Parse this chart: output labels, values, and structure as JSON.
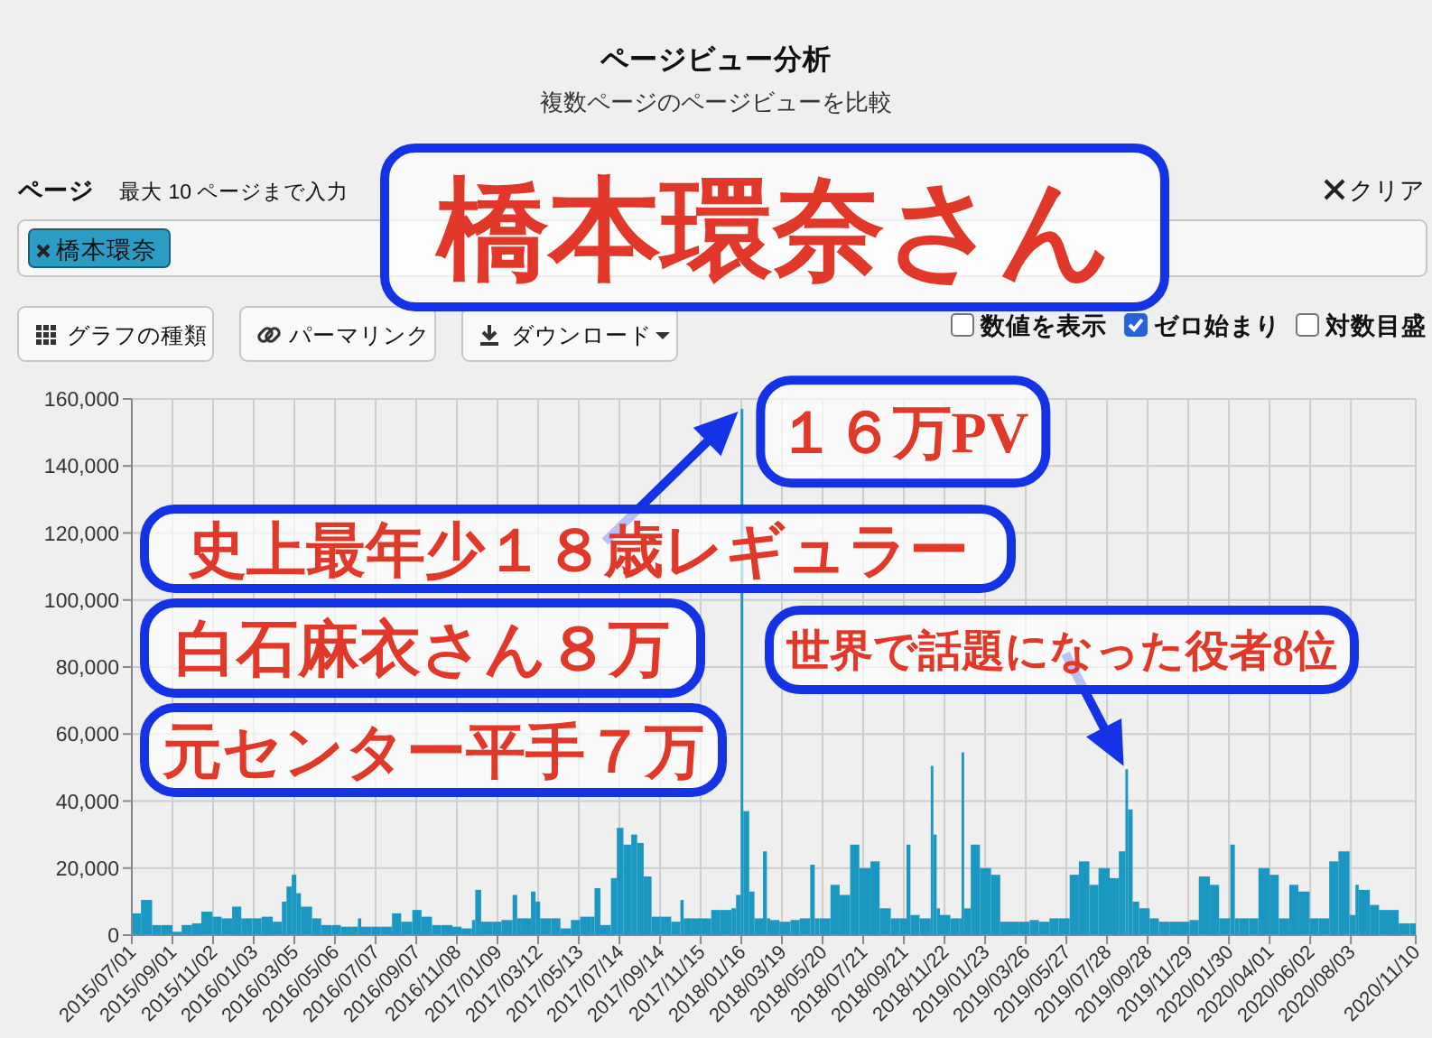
{
  "chart_data": {
    "type": "bar",
    "title": "ページビュー分析",
    "subtitle": "複数ページのページビューを比較",
    "color": "#1b98c2",
    "grid": true,
    "x": [
      "2015-07-01",
      "2015-07-15",
      "2015-08-01",
      "2015-08-15",
      "2015-09-01",
      "2015-09-15",
      "2015-10-01",
      "2015-10-15",
      "2015-11-01",
      "2015-11-15",
      "2015-12-01",
      "2015-12-15",
      "2016-01-01",
      "2016-01-15",
      "2016-02-01",
      "2016-02-15",
      "2016-02-22",
      "2016-03-01",
      "2016-03-08",
      "2016-03-15",
      "2016-04-01",
      "2016-04-15",
      "2016-05-01",
      "2016-05-15",
      "2016-06-01",
      "2016-06-10",
      "2016-06-15",
      "2016-07-01",
      "2016-07-15",
      "2016-08-01",
      "2016-08-15",
      "2016-09-01",
      "2016-09-15",
      "2016-10-01",
      "2016-10-15",
      "2016-11-01",
      "2016-11-15",
      "2016-12-01",
      "2016-12-06",
      "2016-12-15",
      "2017-01-01",
      "2017-01-15",
      "2017-02-01",
      "2017-02-08",
      "2017-02-15",
      "2017-03-01",
      "2017-03-08",
      "2017-03-15",
      "2017-04-01",
      "2017-04-15",
      "2017-05-01",
      "2017-05-15",
      "2017-06-01",
      "2017-06-06",
      "2017-06-15",
      "2017-07-01",
      "2017-07-10",
      "2017-07-20",
      "2017-08-01",
      "2017-08-10",
      "2017-08-20",
      "2017-09-01",
      "2017-09-15",
      "2017-10-01",
      "2017-10-15",
      "2017-10-20",
      "2017-11-01",
      "2017-11-15",
      "2017-12-01",
      "2017-12-15",
      "2018-01-01",
      "2018-01-08",
      "2018-01-15",
      "2018-01-19",
      "2018-01-28",
      "2018-02-05",
      "2018-02-18",
      "2018-02-24",
      "2018-03-01",
      "2018-03-15",
      "2018-04-01",
      "2018-04-15",
      "2018-05-01",
      "2018-05-08",
      "2018-05-15",
      "2018-06-01",
      "2018-06-15",
      "2018-07-01",
      "2018-07-15",
      "2018-08-01",
      "2018-08-15",
      "2018-09-01",
      "2018-09-15",
      "2018-09-25",
      "2018-10-01",
      "2018-10-15",
      "2018-11-01",
      "2018-11-05",
      "2018-11-10",
      "2018-11-15",
      "2018-12-01",
      "2018-12-15",
      "2018-12-18",
      "2018-12-22",
      "2019-01-01",
      "2019-01-15",
      "2019-02-01",
      "2019-02-15",
      "2019-03-01",
      "2019-03-15",
      "2019-04-01",
      "2019-04-15",
      "2019-05-01",
      "2019-05-15",
      "2019-06-01",
      "2019-06-15",
      "2019-07-01",
      "2019-07-15",
      "2019-08-01",
      "2019-08-15",
      "2019-08-25",
      "2019-08-29",
      "2019-09-05",
      "2019-09-15",
      "2019-10-01",
      "2019-10-15",
      "2019-11-01",
      "2019-11-15",
      "2019-12-01",
      "2019-12-15",
      "2020-01-01",
      "2020-01-15",
      "2020-02-01",
      "2020-02-08",
      "2020-02-15",
      "2020-03-01",
      "2020-03-15",
      "2020-04-01",
      "2020-04-15",
      "2020-05-01",
      "2020-05-15",
      "2020-06-01",
      "2020-06-15",
      "2020-07-01",
      "2020-07-15",
      "2020-08-01",
      "2020-08-10",
      "2020-08-15",
      "2020-09-01",
      "2020-09-15",
      "2020-10-01",
      "2020-10-15",
      "2020-11-01"
    ],
    "values": [
      6500,
      10500,
      3000,
      3000,
      1000,
      3000,
      3500,
      7000,
      5500,
      5000,
      8500,
      5000,
      5000,
      5500,
      4000,
      10000,
      14500,
      18000,
      12500,
      8500,
      5000,
      3000,
      3000,
      2500,
      2500,
      5000,
      2500,
      2500,
      2500,
      6500,
      4000,
      7500,
      5500,
      3000,
      3000,
      2500,
      2000,
      4500,
      13500,
      4000,
      4000,
      4500,
      12000,
      5000,
      5000,
      13000,
      10000,
      5000,
      5000,
      2000,
      4500,
      5500,
      5500,
      14000,
      3000,
      17000,
      32000,
      27000,
      30000,
      27500,
      17500,
      5500,
      5500,
      4000,
      10500,
      5000,
      5000,
      5000,
      7500,
      7500,
      8000,
      12000,
      157000,
      37000,
      13000,
      5000,
      25000,
      5000,
      4500,
      4000,
      4500,
      5000,
      21000,
      5000,
      5000,
      15000,
      12000,
      27000,
      20000,
      22000,
      8000,
      5000,
      5000,
      27000,
      6000,
      5000,
      50500,
      30000,
      8000,
      6000,
      5000,
      5000,
      54500,
      8000,
      27000,
      20000,
      18000,
      4000,
      4000,
      4000,
      4500,
      4000,
      5000,
      5000,
      18000,
      22000,
      15000,
      20000,
      17000,
      25000,
      49500,
      37500,
      10000,
      8000,
      5000,
      4000,
      4000,
      4000,
      4500,
      17500,
      15000,
      5000,
      27000,
      5000,
      5000,
      5000,
      20000,
      18000,
      5000,
      15000,
      13000,
      5000,
      5000,
      22000,
      25000,
      6000,
      15000,
      13500,
      9000,
      7500,
      7500,
      3500,
      3500
    ],
    "xlim": [
      "2015-07-01",
      "2020-11-10"
    ],
    "xticks": [
      {
        "value": "2015-07-01",
        "label": "2015/07/01"
      },
      {
        "value": "2015-09-01",
        "label": "2015/09/01"
      },
      {
        "value": "2015-11-02",
        "label": "2015/11/02"
      },
      {
        "value": "2016-01-03",
        "label": "2016/01/03"
      },
      {
        "value": "2016-03-05",
        "label": "2016/03/05"
      },
      {
        "value": "2016-05-06",
        "label": "2016/05/06"
      },
      {
        "value": "2016-07-07",
        "label": "2016/07/07"
      },
      {
        "value": "2016-09-07",
        "label": "2016/09/07"
      },
      {
        "value": "2016-11-08",
        "label": "2016/11/08"
      },
      {
        "value": "2017-01-09",
        "label": "2017/01/09"
      },
      {
        "value": "2017-03-12",
        "label": "2017/03/12"
      },
      {
        "value": "2017-05-13",
        "label": "2017/05/13"
      },
      {
        "value": "2017-07-14",
        "label": "2017/07/14"
      },
      {
        "value": "2017-09-14",
        "label": "2017/09/14"
      },
      {
        "value": "2017-11-15",
        "label": "2017/11/15"
      },
      {
        "value": "2018-01-16",
        "label": "2018/01/16"
      },
      {
        "value": "2018-03-19",
        "label": "2018/03/19"
      },
      {
        "value": "2018-05-20",
        "label": "2018/05/20"
      },
      {
        "value": "2018-07-21",
        "label": "2018/07/21"
      },
      {
        "value": "2018-09-21",
        "label": "2018/09/21"
      },
      {
        "value": "2018-11-22",
        "label": "2018/11/22"
      },
      {
        "value": "2019-01-23",
        "label": "2019/01/23"
      },
      {
        "value": "2019-03-26",
        "label": "2019/03/26"
      },
      {
        "value": "2019-05-27",
        "label": "2019/05/27"
      },
      {
        "value": "2019-07-28",
        "label": "2019/07/28"
      },
      {
        "value": "2019-09-28",
        "label": "2019/09/28"
      },
      {
        "value": "2019-11-29",
        "label": "2019/11/29"
      },
      {
        "value": "2020-01-30",
        "label": "2020/01/30"
      },
      {
        "value": "2020-04-01",
        "label": "2020/04/01"
      },
      {
        "value": "2020-06-02",
        "label": "2020/06/02"
      },
      {
        "value": "2020-08-03",
        "label": "2020/08/03"
      },
      {
        "value": "2020-11-10",
        "label": "2020/11/10"
      }
    ],
    "ylim": [
      0,
      160000
    ],
    "yticks": [
      0,
      {
        "value": 20000,
        "label": "20,000"
      },
      {
        "value": 40000,
        "label": "40,000"
      },
      {
        "value": 60000,
        "label": "60,000"
      },
      {
        "value": 80000,
        "label": "80,000"
      },
      {
        "value": 100000,
        "label": "100,000"
      },
      {
        "value": 120000,
        "label": "120,000"
      },
      {
        "value": 140000,
        "label": "140,000"
      },
      {
        "value": 160000,
        "label": "160,000"
      }
    ],
    "annotations": [
      "ページ",
      "最大 10 ページまで入力",
      "クリア",
      "橋本環奈",
      "グラフの種類",
      "パーマリンク",
      "ダウンロード",
      "数値を表示",
      "ゼロ始まり",
      "対数目盛",
      "橋本環奈さん",
      {
        "text": "１６万PV",
        "x": "2018-01-15",
        "y": 157000
      },
      {
        "text": "史上最年少１８歳レギュラー",
        "x": "2018-01-15",
        "y": 157000
      },
      "白石麻衣さん８万",
      "元センター平手７万",
      {
        "text": "世界で話題になった役者8位",
        "x": "2019-08-25",
        "y": 49500
      }
    ]
  }
}
